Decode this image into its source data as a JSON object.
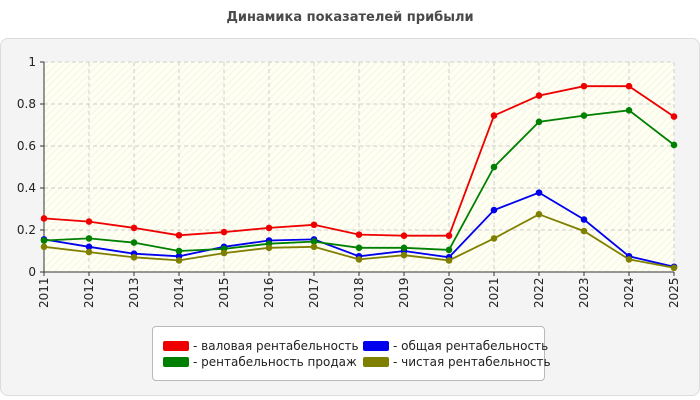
{
  "chart_data": {
    "type": "line",
    "title": "Динамика показателей прибыли",
    "xlabel": "",
    "ylabel": "",
    "x": [
      "2011",
      "2012",
      "2013",
      "2014",
      "2015",
      "2016",
      "2017",
      "2018",
      "2019",
      "2020",
      "2021",
      "2022",
      "2023",
      "2024",
      "2025"
    ],
    "ylim": [
      0,
      1
    ],
    "yticks": [
      "0",
      "0.2",
      "0.4",
      "0.6",
      "0.8",
      "1"
    ],
    "grid": true,
    "legend_position": "bottom",
    "series": [
      {
        "name": "- валовая рентабельность",
        "color": "#ee0000",
        "values": [
          0.255,
          0.24,
          0.21,
          0.175,
          0.19,
          0.21,
          0.225,
          0.178,
          0.173,
          0.173,
          0.745,
          0.84,
          0.885,
          0.885,
          0.74
        ]
      },
      {
        "name": "- общая рентабельность",
        "color": "#0000ee",
        "values": [
          0.155,
          0.12,
          0.087,
          0.075,
          0.12,
          0.15,
          0.155,
          0.075,
          0.1,
          0.07,
          0.295,
          0.378,
          0.25,
          0.075,
          0.025
        ]
      },
      {
        "name": "- рентабельность продаж",
        "color": "#008000",
        "values": [
          0.15,
          0.16,
          0.14,
          0.1,
          0.11,
          0.135,
          0.145,
          0.115,
          0.115,
          0.105,
          0.5,
          0.715,
          0.745,
          0.77,
          0.605
        ]
      },
      {
        "name": "- чистая рентабельность",
        "color": "#808000",
        "values": [
          0.12,
          0.095,
          0.07,
          0.055,
          0.09,
          0.115,
          0.12,
          0.06,
          0.08,
          0.055,
          0.16,
          0.275,
          0.195,
          0.06,
          0.02
        ]
      }
    ]
  }
}
